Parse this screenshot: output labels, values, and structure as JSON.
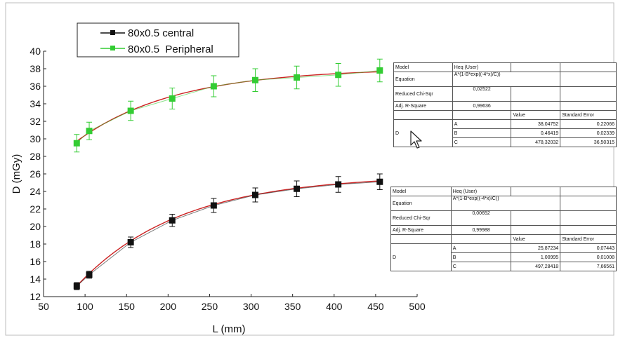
{
  "chart_data": {
    "type": "scatter",
    "xlabel": "L (mm)",
    "ylabel": "D (mGy)",
    "xlim": [
      50,
      500
    ],
    "ylim": [
      12,
      40
    ],
    "xticks": [
      "50",
      "100",
      "150",
      "200",
      "250",
      "300",
      "350",
      "400",
      "450",
      "500"
    ],
    "yticks": [
      "12",
      "14",
      "16",
      "18",
      "20",
      "22",
      "24",
      "26",
      "28",
      "30",
      "32",
      "34",
      "36",
      "38",
      "40"
    ],
    "legend_position": "top-left",
    "series": [
      {
        "name": "80x0.5 central",
        "color": "#111111",
        "fit_color": "#cc2222",
        "x": [
          90,
          105,
          155,
          205,
          255,
          305,
          355,
          405,
          455
        ],
        "y": [
          13.2,
          14.5,
          18.2,
          20.7,
          22.4,
          23.6,
          24.3,
          24.8,
          25.1
        ],
        "err": [
          0.4,
          0.4,
          0.6,
          0.7,
          0.8,
          0.8,
          0.9,
          0.9,
          0.9
        ],
        "fit": {
          "A": 25.87234,
          "B": 1.00995,
          "C": 497.28418
        }
      },
      {
        "name": "80x0.5  Peripheral",
        "color": "#33cc33",
        "fit_color": "#cc2222",
        "x": [
          90,
          105,
          155,
          205,
          255,
          305,
          355,
          405,
          455
        ],
        "y": [
          29.5,
          30.9,
          33.2,
          34.6,
          36.0,
          36.7,
          37.0,
          37.3,
          37.8
        ],
        "err": [
          1.0,
          1.0,
          1.1,
          1.2,
          1.2,
          1.3,
          1.3,
          1.3,
          1.3
        ],
        "fit": {
          "A": 38.04752,
          "B": 0.46419,
          "C": 478.32032
        }
      }
    ],
    "tables": [
      {
        "model_label": "Model",
        "model_value": "Heq (User)",
        "equation_label": "Equation",
        "equation_value": "A*(1-B*exp((-4*x)/C))",
        "chi_label": "Reduced Chi-Sqr",
        "chi_value": "0,02522",
        "r2_label": "Adj. R-Square",
        "r2_value": "0,99636",
        "value_header": "Value",
        "error_header": "Standard Error",
        "group_label": "D",
        "params": [
          {
            "name": "A",
            "value": "38,04752",
            "error": "0,22066"
          },
          {
            "name": "B",
            "value": "0,46419",
            "error": "0,02339"
          },
          {
            "name": "C",
            "value": "478,32032",
            "error": "36,50315"
          }
        ]
      },
      {
        "model_label": "Model",
        "model_value": "Heq (User)",
        "equation_label": "Equation",
        "equation_value": "A*(1-B*exp((-4*x)/C))",
        "chi_label": "Reduced Chi-Sqr",
        "chi_value": "0,00652",
        "r2_label": "Adj. R-Square",
        "r2_value": "0,99988",
        "value_header": "Value",
        "error_header": "Standard Error",
        "group_label": "D",
        "params": [
          {
            "name": "A",
            "value": "25,87234",
            "error": "0,07443"
          },
          {
            "name": "B",
            "value": "1,00995",
            "error": "0,01008"
          },
          {
            "name": "C",
            "value": "497,28418",
            "error": "7,66561"
          }
        ]
      }
    ]
  }
}
